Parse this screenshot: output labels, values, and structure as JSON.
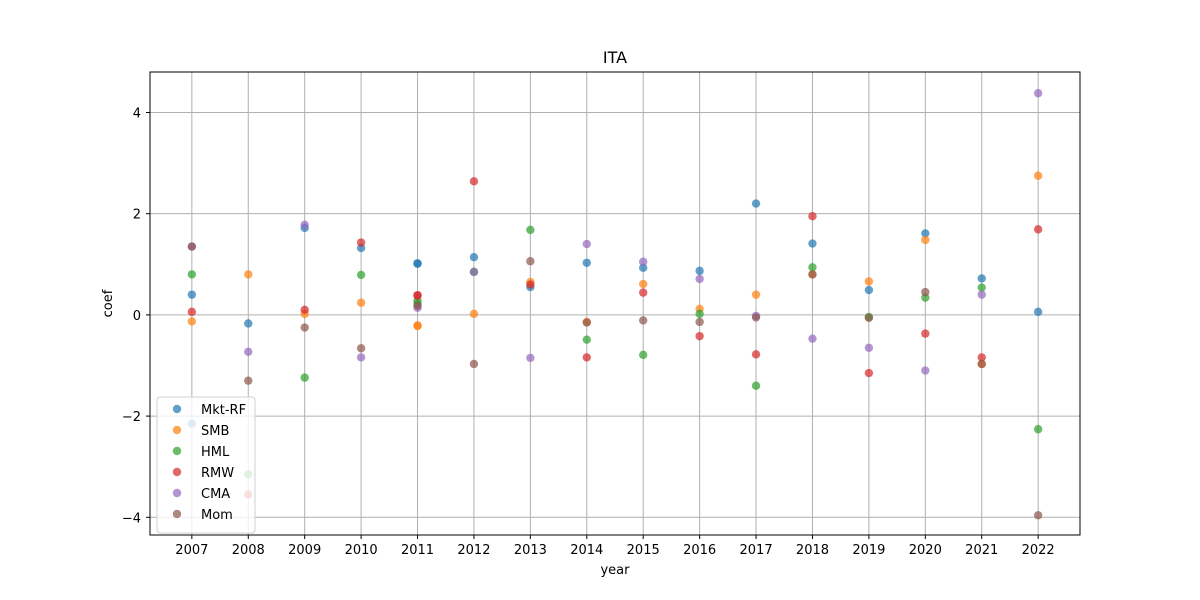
{
  "chart_data": {
    "type": "scatter",
    "title": "ITA",
    "xlabel": "year",
    "ylabel": "coef",
    "x": [
      "2007",
      "2008",
      "2009",
      "2010",
      "2011",
      "2012",
      "2013",
      "2014",
      "2015",
      "2016",
      "2017",
      "2018",
      "2019",
      "2020",
      "2021",
      "2022"
    ],
    "ylim": [
      -4.35,
      4.8
    ],
    "yticks": [
      -4,
      -2,
      0,
      2,
      4
    ],
    "grid": true,
    "legend_position": "lower-left",
    "series": [
      {
        "name": "Mkt-RF",
        "color": "#1f77b4",
        "values": [
          0.4,
          -0.17,
          1.72,
          1.32,
          1.02,
          1.14,
          0.55,
          1.03,
          0.93,
          0.87,
          2.2,
          1.41,
          0.49,
          1.61,
          0.72,
          0.06
        ],
        "extra_points": [
          [
            2007,
            -2.15
          ],
          [
            2011,
            1.01
          ]
        ]
      },
      {
        "name": "SMB",
        "color": "#ff7f0e",
        "values": [
          -0.13,
          0.8,
          0.02,
          0.24,
          -0.22,
          0.02,
          0.65,
          -0.14,
          0.61,
          0.12,
          0.4,
          0.8,
          0.66,
          1.48,
          -0.97,
          2.75
        ],
        "extra_points": [
          [
            2011,
            -0.21
          ]
        ]
      },
      {
        "name": "HML",
        "color": "#2ca02c",
        "values": [
          0.8,
          -3.15,
          -1.24,
          0.79,
          0.28,
          0.85,
          1.68,
          -0.49,
          -0.79,
          0.02,
          -1.4,
          0.94,
          -0.04,
          0.34,
          0.54,
          -2.26
        ],
        "extra_points": [
          [
            2011,
            0.22
          ]
        ]
      },
      {
        "name": "RMW",
        "color": "#d62728",
        "values": [
          0.06,
          -3.55,
          0.1,
          1.43,
          0.39,
          2.64,
          0.6,
          -0.84,
          0.44,
          -0.42,
          -0.78,
          1.95,
          -1.15,
          -0.37,
          -0.84,
          1.69
        ],
        "extra_points": [
          [
            2011,
            0.38
          ]
        ]
      },
      {
        "name": "CMA",
        "color": "#9467bd",
        "values": [
          1.35,
          -0.73,
          1.78,
          -0.84,
          0.14,
          0.85,
          -0.85,
          1.4,
          1.05,
          0.71,
          -0.02,
          -0.47,
          -0.65,
          -1.1,
          0.4,
          4.38
        ],
        "extra_points": []
      },
      {
        "name": "Mom",
        "color": "#8c564b",
        "values": [
          1.35,
          -1.3,
          -0.25,
          -0.66,
          0.18,
          -0.97,
          1.06,
          -0.15,
          -0.11,
          -0.14,
          -0.05,
          0.8,
          -0.06,
          0.45,
          -0.97,
          -3.96
        ],
        "extra_points": []
      }
    ]
  }
}
